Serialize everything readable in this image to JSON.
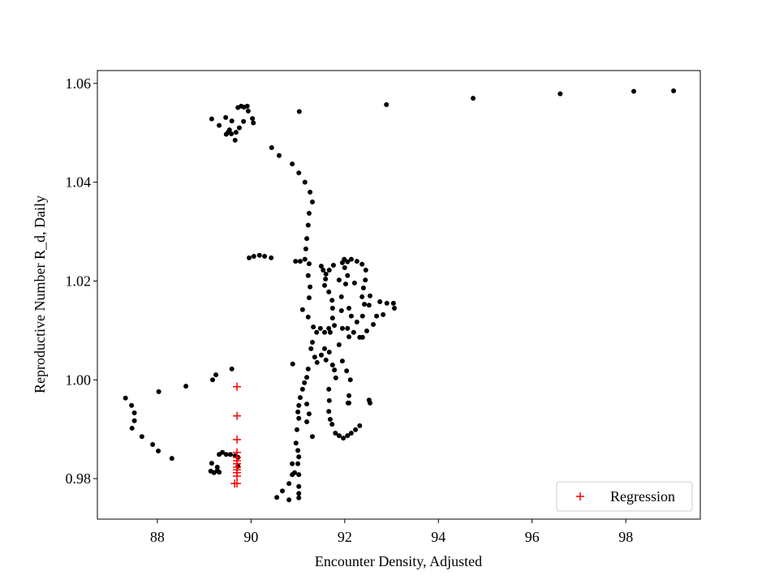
{
  "chart_data": {
    "type": "scatter",
    "xlabel": "Encounter Density, Adjusted",
    "ylabel": "Reproductive Number R_d, Daily",
    "xlim": [
      86.72,
      99.59
    ],
    "ylim": [
      0.9718,
      1.0626
    ],
    "xticks": [
      88,
      90,
      92,
      94,
      96,
      98
    ],
    "yticks": [
      0.98,
      {
        "value": 1.0,
        "label": "1.00"
      },
      1.02,
      1.04,
      1.06
    ],
    "legend": "lower right",
    "series": [
      {
        "color": "#000000",
        "marker": "o",
        "x": [
          91.03,
          92.89,
          94.74,
          96.6,
          98.17,
          99.02,
          89.16,
          89.32,
          89.46,
          89.59,
          89.51,
          89.47,
          89.58,
          89.66,
          89.68,
          89.75,
          89.72,
          89.79,
          89.85,
          89.92,
          89.94,
          90.03,
          90.05,
          89.84,
          89.54,
          90.44,
          90.6,
          90.88,
          91.02,
          91.15,
          91.26,
          91.31,
          91.24,
          91.22,
          91.19,
          91.17,
          91.15,
          91.05,
          90.95,
          90.43,
          90.06,
          90.18,
          90.29,
          89.96,
          91.24,
          91.22,
          91.26,
          91.24,
          91.1,
          91.22,
          91.33,
          91.4,
          91.48,
          91.57,
          91.66,
          91.31,
          91.28,
          91.36,
          91.41,
          91.5,
          91.57,
          91.67,
          91.6,
          91.74,
          91.22,
          91.19,
          91.14,
          91.1,
          91.05,
          91.02,
          91.0,
          91.19,
          91.24,
          91.19,
          91.31,
          91.02,
          90.98,
          90.96,
          91.0,
          91.02,
          90.88,
          91.0,
          90.93,
          91.02,
          90.81,
          90.67,
          90.55,
          90.81,
          91.02,
          91.02,
          91.02,
          90.88,
          91.5,
          91.54,
          91.6,
          91.67,
          91.76,
          91.59,
          91.57,
          91.66,
          91.73,
          91.74,
          91.74,
          91.78,
          91.69,
          91.99,
          92.06,
          92.14,
          92.26,
          92.37,
          92.45,
          92.44,
          92.4,
          92.37,
          92.42,
          92.38,
          92.26,
          92.19,
          92.09,
          92.06,
          92.14,
          92.09,
          92.02,
          92.06,
          92.0,
          91.95,
          91.88,
          91.93,
          91.93,
          91.95,
          91.88,
          91.95,
          92.04,
          92.12,
          92.09,
          92.09,
          92.52,
          92.54,
          91.66,
          91.67,
          91.66,
          91.69,
          91.73,
          91.8,
          91.88,
          91.97,
          92.06,
          92.14,
          92.23,
          92.32,
          91.81,
          91.78,
          92.07,
          92.61,
          92.68,
          92.75,
          92.9,
          93.04,
          93.06,
          92.82,
          92.52,
          92.54,
          92.47,
          92.38,
          92.32,
          92.21,
          87.32,
          87.45,
          87.51,
          87.51,
          87.46,
          87.67,
          87.9,
          88.02,
          88.31,
          88.03,
          88.61,
          89.18,
          89.25,
          89.59,
          89.16,
          89.14,
          89.21,
          89.28,
          89.32,
          89.28,
          89.32,
          89.39,
          89.47,
          89.56,
          89.66,
          89.72,
          89.72,
          90.89
        ],
        "values": [
          1.0543,
          1.0557,
          1.057,
          1.0579,
          1.0584,
          1.0585,
          1.0528,
          1.0515,
          1.0531,
          1.0524,
          1.0501,
          1.0497,
          1.0498,
          1.0485,
          1.0501,
          1.051,
          1.0551,
          1.0554,
          1.0552,
          1.0554,
          1.0544,
          1.0529,
          1.052,
          1.0523,
          1.0506,
          1.047,
          1.0454,
          1.0437,
          1.0419,
          1.04,
          1.038,
          1.036,
          1.0337,
          1.0313,
          1.0286,
          1.0265,
          1.0244,
          1.024,
          1.024,
          1.0247,
          1.025,
          1.0252,
          1.025,
          1.0247,
          1.0235,
          1.0211,
          1.0188,
          1.0166,
          1.0142,
          1.0127,
          1.0107,
          1.0096,
          1.0104,
          1.0096,
          1.0104,
          1.0076,
          1.0063,
          1.0046,
          1.0035,
          1.005,
          1.0063,
          1.0056,
          1.004,
          1.003,
          1.0022,
          1.0005,
          0.9994,
          0.9981,
          0.9964,
          0.9948,
          0.9935,
          0.9951,
          0.9931,
          0.9915,
          0.9885,
          0.9922,
          0.9899,
          0.9872,
          0.9857,
          0.9844,
          0.983,
          0.983,
          0.9812,
          0.9808,
          0.979,
          0.9775,
          0.9762,
          0.9757,
          0.977,
          0.9784,
          0.9761,
          0.9808,
          1.023,
          1.0222,
          1.0214,
          1.0222,
          1.0232,
          1.0204,
          1.0191,
          1.0178,
          1.0161,
          1.0145,
          1.0125,
          1.011,
          1.0096,
          1.0244,
          1.0239,
          1.0244,
          1.024,
          1.0234,
          1.0222,
          1.0202,
          1.0186,
          1.0168,
          1.0153,
          1.0129,
          1.0117,
          1.0096,
          1.0087,
          1.0104,
          1.0129,
          1.0145,
          1.0194,
          1.0211,
          1.0227,
          1.0237,
          1.0202,
          1.0168,
          1.014,
          1.0104,
          1.0071,
          1.0038,
          1.0018,
          1.0,
          0.9968,
          0.9953,
          0.9959,
          0.9953,
          0.9981,
          0.9958,
          0.9936,
          0.992,
          0.991,
          0.9892,
          0.9887,
          0.9882,
          0.9887,
          0.9892,
          0.9899,
          0.9907,
          1.0004,
          1.002,
          0.9953,
          1.0112,
          1.0129,
          1.0158,
          1.0155,
          1.0155,
          1.0145,
          1.0132,
          1.0151,
          1.017,
          1.0099,
          1.0086,
          1.0086,
          1.0196,
          0.9963,
          0.9948,
          0.9933,
          0.9917,
          0.9902,
          0.9885,
          0.9869,
          0.9856,
          0.9841,
          0.9976,
          0.9987,
          1.0,
          1.001,
          1.0022,
          0.9831,
          0.9815,
          0.9812,
          0.9816,
          0.9849,
          0.9823,
          0.9813,
          0.9853,
          0.9849,
          0.9849,
          0.9846,
          0.9843,
          0.9825,
          1.0032
        ]
      },
      {
        "name": "Regression",
        "color": "#ff0000",
        "marker": "+",
        "x": [
          89.7,
          89.7,
          89.7,
          89.7,
          89.7,
          89.7,
          89.7,
          89.7,
          89.7,
          89.7,
          89.7,
          89.7,
          89.65
        ],
        "values": [
          0.9986,
          0.9927,
          0.9879,
          0.9853,
          0.9843,
          0.9836,
          0.983,
          0.9823,
          0.9818,
          0.9812,
          0.9805,
          0.979,
          0.979
        ]
      }
    ]
  }
}
